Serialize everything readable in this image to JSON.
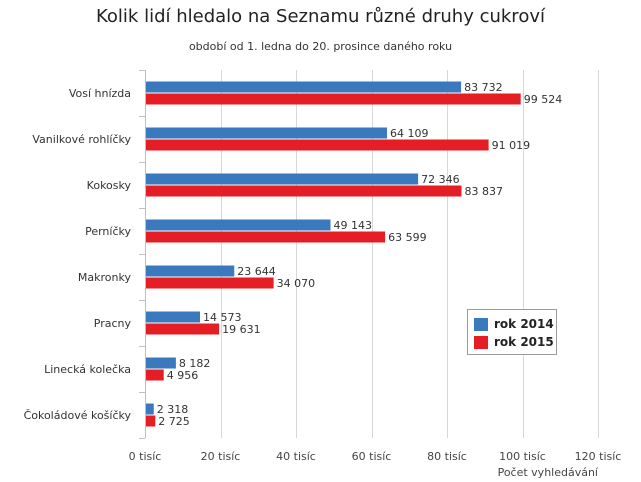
{
  "chart_data": {
    "type": "bar",
    "orientation": "horizontal",
    "title": "Kolik lidí hledalo na Seznamu různé druhy cukroví",
    "subtitle": "období od 1. ledna do 20. prosince daného roku",
    "xlabel": "Počet vyhledávání",
    "ylabel": "",
    "xlim": [
      0,
      120000
    ],
    "x_ticks": [
      0,
      20000,
      40000,
      60000,
      80000,
      100000,
      120000
    ],
    "x_tick_labels": [
      "0 tisíc",
      "20 tisíc",
      "40 tisíc",
      "60 tisíc",
      "80 tisíc",
      "100 tisíc",
      "120 tisíc"
    ],
    "grid": true,
    "legend_position": "right",
    "categories": [
      "Vosí hnízda",
      "Vanilkové rohlíčky",
      "Kokosky",
      "Perníčky",
      "Makronky",
      "Pracny",
      "Linecká kolečka",
      "Čokoládové košíčky"
    ],
    "series": [
      {
        "name": "rok 2014",
        "color": "#3a79bd",
        "values": [
          83732,
          64109,
          72346,
          49143,
          23644,
          14573,
          8182,
          2318
        ],
        "labels": [
          "83 732",
          "64 109",
          "72 346",
          "49 143",
          "23 644",
          "14 573",
          "8 182",
          "2 318"
        ]
      },
      {
        "name": "rok 2015",
        "color": "#e51e25",
        "values": [
          99524,
          91019,
          83837,
          63599,
          34070,
          19631,
          4956,
          2725
        ],
        "labels": [
          "99 524",
          "91 019",
          "83 837",
          "63 599",
          "34 070",
          "19 631",
          "4 956",
          "2 725"
        ]
      }
    ]
  }
}
